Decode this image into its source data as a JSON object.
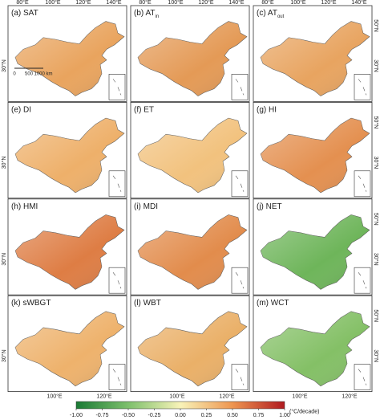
{
  "panels": [
    {
      "label": "(a) SAT",
      "fill": "#e9a45e"
    },
    {
      "label": "(b) AT",
      "subscript": "in",
      "fill": "#e49a56"
    },
    {
      "label": "(c) AT",
      "subscript": "out",
      "fill": "#e8a460"
    },
    {
      "label": "(e) DI",
      "fill": "#eeb06a"
    },
    {
      "label": "(f) ET",
      "fill": "#f2c27e"
    },
    {
      "label": "(g) HI",
      "fill": "#e49050"
    },
    {
      "label": "(h) HMI",
      "fill": "#de7d44"
    },
    {
      "label": "(i) MDI",
      "fill": "#e28c4c"
    },
    {
      "label": "(j) NET",
      "fill": "#6eb55a"
    },
    {
      "label": "(k) sWBGT",
      "fill": "#eeb26c"
    },
    {
      "label": "(l) WBT",
      "fill": "#eab068"
    },
    {
      "label": "(m) WCT",
      "fill": "#84c066"
    }
  ],
  "top_lon_labels": [
    "80°E",
    "100°E",
    "120°E",
    "140°E"
  ],
  "bottom_lon_labels": [
    "100°E",
    "120°E"
  ],
  "right_lat_labels": [
    "50°N",
    "30°N"
  ],
  "left_lat_label": "30°N",
  "scale_bar": [
    "0",
    "500",
    "1000 km"
  ],
  "colorbar": {
    "unit": "(°C/decade)",
    "lim": [
      -1,
      1
    ],
    "ticks": [
      {
        "value": -1,
        "label": "-1.00"
      },
      {
        "value": -0.75,
        "label": "-0.75"
      },
      {
        "value": -0.5,
        "label": "-0.50"
      },
      {
        "value": -0.25,
        "label": "-0.25"
      },
      {
        "value": 0,
        "label": "0.00"
      },
      {
        "value": 0.25,
        "label": "0.25"
      },
      {
        "value": 0.5,
        "label": "0.50"
      },
      {
        "value": 0.75,
        "label": "0.75"
      },
      {
        "value": 1,
        "label": "1.00"
      }
    ]
  }
}
